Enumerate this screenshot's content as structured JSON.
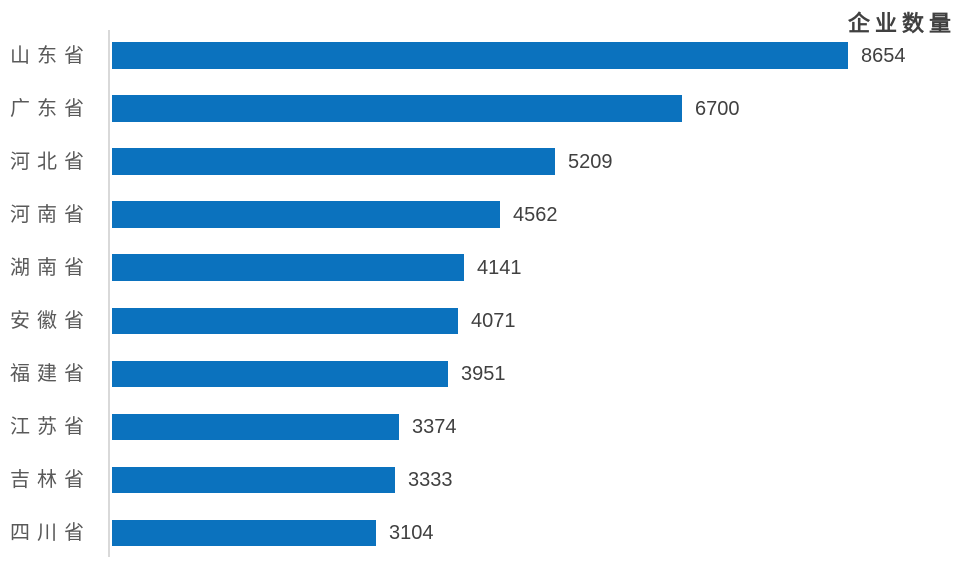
{
  "chart_data": {
    "type": "bar",
    "orientation": "horizontal",
    "title": "企业数量",
    "categories": [
      "山东省",
      "广东省",
      "河北省",
      "河南省",
      "湖南省",
      "安徽省",
      "福建省",
      "江苏省",
      "吉林省",
      "四川省"
    ],
    "values": [
      8654,
      6700,
      5209,
      4562,
      4141,
      4071,
      3951,
      3374,
      3333,
      3104
    ],
    "data_labels_shown": true,
    "legend_position": "none",
    "grid": false,
    "xlabel": "",
    "ylabel": "",
    "colors": {
      "bar": "#0b72be",
      "axis_line": "#d9d9d9",
      "category_label": "#595959",
      "value_label": "#404040",
      "title": "#404040",
      "background": "#ffffff"
    }
  }
}
